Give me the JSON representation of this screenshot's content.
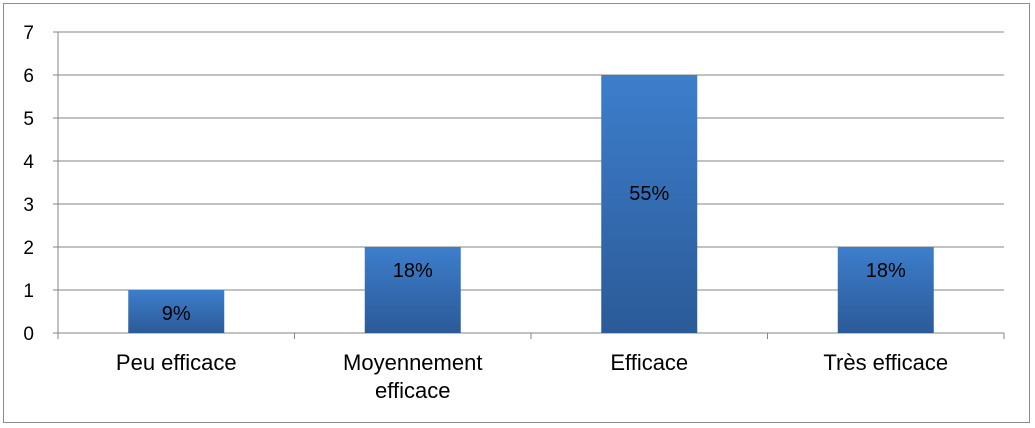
{
  "chart_data": {
    "type": "bar",
    "categories": [
      [
        "Peu efficace"
      ],
      [
        "Moyennement",
        "efficace"
      ],
      [
        "Efficace"
      ],
      [
        "Très efficace"
      ]
    ],
    "values": [
      1,
      2,
      6,
      2
    ],
    "data_labels": [
      "9%",
      "18%",
      "55%",
      "18%"
    ],
    "ylim": [
      0,
      7
    ],
    "yticks": [
      0,
      1,
      2,
      3,
      4,
      5,
      6,
      7
    ],
    "grid": true,
    "legend": "none",
    "bar_color_top": "#3d7ecc",
    "bar_color_bottom": "#2b5a98",
    "grid_color": "#868686"
  }
}
